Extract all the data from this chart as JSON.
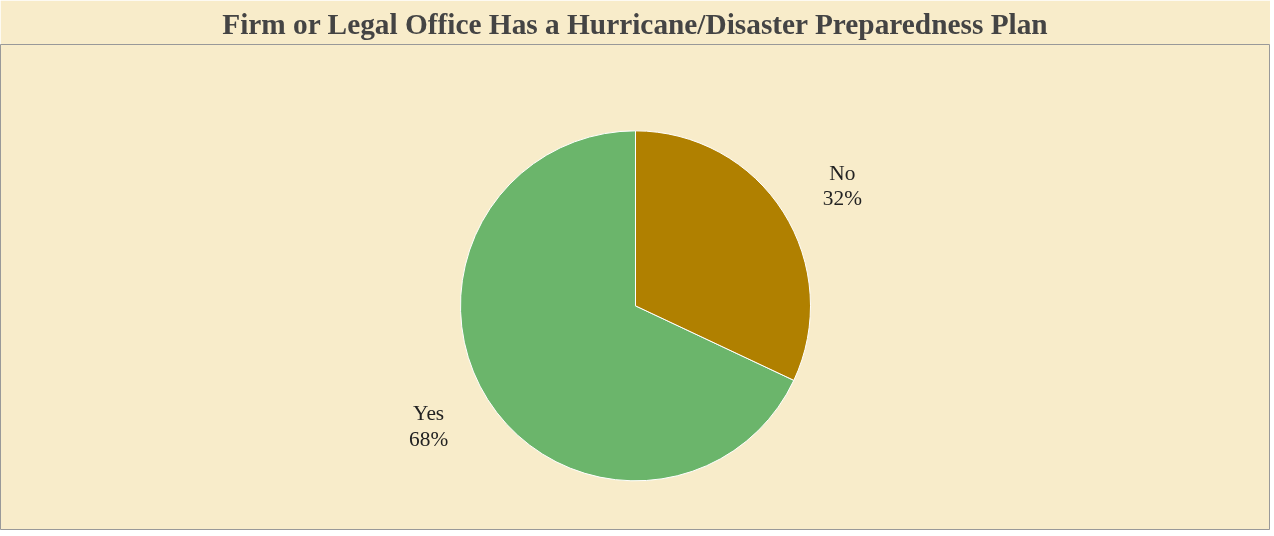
{
  "chart_data": {
    "type": "pie",
    "title": "Firm or Legal Office Has a Hurricane/Disaster Preparedness Plan",
    "categories": [
      "Yes",
      "No"
    ],
    "values": [
      68,
      32
    ],
    "colors": [
      "#6bb56b",
      "#b08000"
    ],
    "value_labels": [
      "68%",
      "32%"
    ]
  }
}
